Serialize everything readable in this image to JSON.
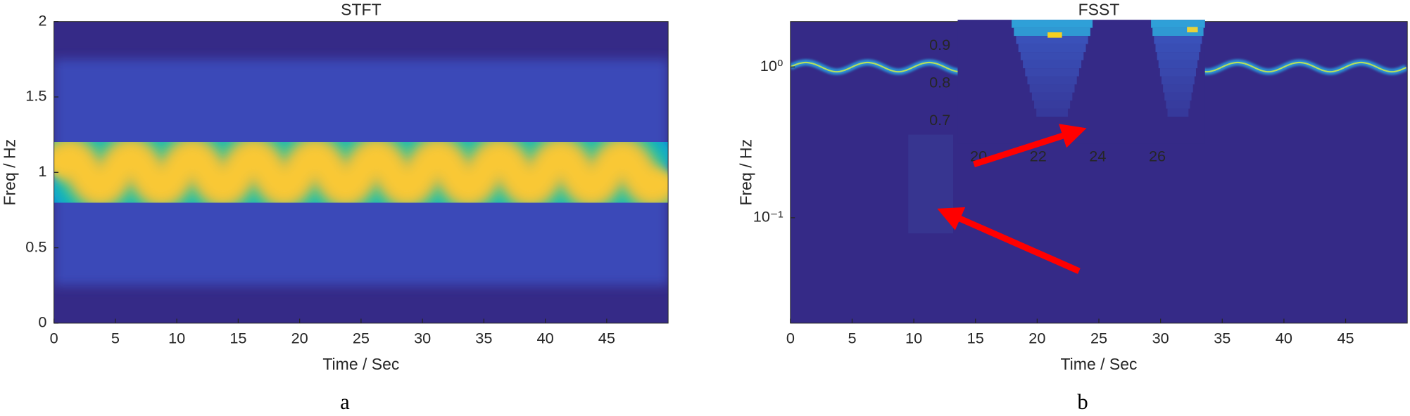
{
  "chart_data": [
    {
      "type": "heatmap",
      "title": "STFT",
      "x_label": "Time / Sec",
      "y_label": "Freq / Hz",
      "panel_label": "a",
      "xlim": [
        0,
        50
      ],
      "xticks": [
        0,
        5,
        10,
        15,
        20,
        25,
        30,
        35,
        40,
        45
      ],
      "ylim": [
        0,
        2
      ],
      "yticks": [
        0,
        0.5,
        1,
        1.5,
        2
      ]
    },
    {
      "type": "heatmap",
      "title": "FSST",
      "x_label": "Time / Sec",
      "y_label": "Freq / Hz",
      "panel_label": "b",
      "xlim": [
        0,
        50
      ],
      "xticks": [
        0,
        5,
        10,
        15,
        20,
        25,
        30,
        35,
        40,
        45
      ],
      "ylim": [
        0.02,
        2
      ],
      "yscale": "log",
      "yticks": [
        {
          "value": 1,
          "label": "10⁰"
        },
        {
          "value": 0.1,
          "label": "10⁻¹"
        }
      ]
    },
    {
      "type": "inset",
      "xlim": [
        19.3,
        27.6
      ],
      "xticks": [
        20,
        22,
        24,
        26
      ],
      "ylim": [
        0.64,
        0.97
      ],
      "yticks": [
        0.7,
        0.8,
        0.9
      ]
    }
  ]
}
